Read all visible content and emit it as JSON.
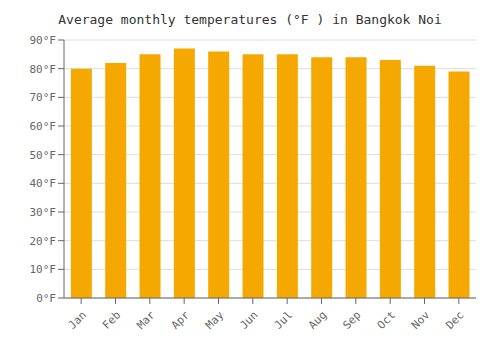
{
  "chart_data": {
    "type": "bar",
    "title": "Average monthly temperatures (°F ) in Bangkok Noi",
    "categories": [
      "Jan",
      "Feb",
      "Mar",
      "Apr",
      "May",
      "Jun",
      "Jul",
      "Aug",
      "Sep",
      "Oct",
      "Nov",
      "Dec"
    ],
    "values": [
      80,
      82,
      85,
      87,
      86,
      85,
      85,
      84,
      84,
      83,
      81,
      79
    ],
    "color": "#F5A800",
    "ylim": [
      0,
      90
    ],
    "yticks": [
      {
        "value": 0,
        "label": "0°F"
      },
      {
        "value": 10,
        "label": "10°F"
      },
      {
        "value": 20,
        "label": "20°F"
      },
      {
        "value": 30,
        "label": "30°F"
      },
      {
        "value": 40,
        "label": "40°F"
      },
      {
        "value": 50,
        "label": "50°F"
      },
      {
        "value": 60,
        "label": "60°F"
      },
      {
        "value": 70,
        "label": "70°F"
      },
      {
        "value": 80,
        "label": "80°F"
      },
      {
        "value": 90,
        "label": "90°F"
      }
    ],
    "grid": true
  }
}
